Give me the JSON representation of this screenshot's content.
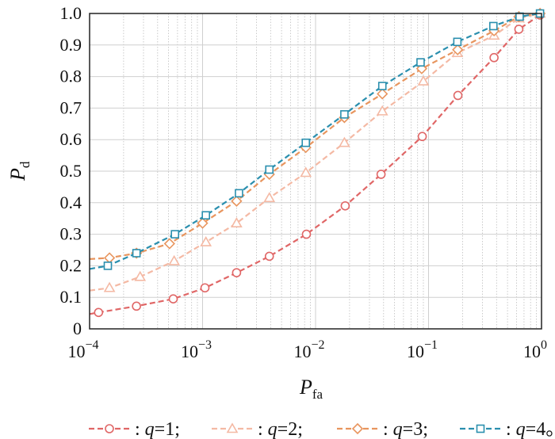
{
  "chart_data": {
    "type": "line",
    "x_scale": "log",
    "xlim": [
      0.0001,
      1
    ],
    "ylim": [
      0,
      1
    ],
    "x_ticks": [
      {
        "base": "10",
        "exp": "−4"
      },
      {
        "base": "10",
        "exp": "−3"
      },
      {
        "base": "10",
        "exp": "−2"
      },
      {
        "base": "10",
        "exp": "−1"
      },
      {
        "base": "10",
        "exp": "0"
      }
    ],
    "y_ticks": [
      "0",
      "0.1",
      "0.2",
      "0.3",
      "0.4",
      "0.5",
      "0.6",
      "0.7",
      "0.8",
      "0.9",
      "1.0"
    ],
    "xlabel": {
      "main": "P",
      "sub": "fa"
    },
    "ylabel": {
      "main": "P",
      "sub": "d"
    },
    "grid": true,
    "legend": {
      "placement": "bottom",
      "separator": ":",
      "items": [
        {
          "var": "q",
          "eq": "=1",
          "end": ";"
        },
        {
          "var": "q",
          "eq": "=2",
          "end": ";"
        },
        {
          "var": "q",
          "eq": "=3",
          "end": ";"
        },
        {
          "var": "q",
          "eq": "=4",
          "end": "。"
        }
      ]
    },
    "series": [
      {
        "key": "q1",
        "color": "#e06666",
        "marker": "circle",
        "x": [
          0.00012,
          0.00026,
          0.00055,
          0.00105,
          0.002,
          0.0039,
          0.0083,
          0.0183,
          0.038,
          0.088,
          0.182,
          0.38,
          0.63,
          0.97
        ],
        "y": [
          0.052,
          0.072,
          0.095,
          0.13,
          0.178,
          0.23,
          0.3,
          0.39,
          0.49,
          0.61,
          0.74,
          0.86,
          0.95,
          0.995
        ]
      },
      {
        "key": "q2",
        "color": "#f4b9a4",
        "marker": "triangle",
        "x": [
          0.00015,
          0.00028,
          0.00056,
          0.00107,
          0.002,
          0.0039,
          0.0082,
          0.018,
          0.039,
          0.09,
          0.18,
          0.38,
          0.63,
          0.97
        ],
        "y": [
          0.13,
          0.165,
          0.215,
          0.275,
          0.335,
          0.415,
          0.495,
          0.59,
          0.69,
          0.785,
          0.875,
          0.93,
          0.985,
          1.0
        ]
      },
      {
        "key": "q3",
        "color": "#e8955e",
        "marker": "diamond",
        "x": [
          0.00015,
          0.00026,
          0.00051,
          0.001,
          0.002,
          0.0039,
          0.0082,
          0.018,
          0.039,
          0.087,
          0.181,
          0.38,
          0.63,
          0.97
        ],
        "y": [
          0.225,
          0.24,
          0.27,
          0.335,
          0.405,
          0.49,
          0.575,
          0.67,
          0.745,
          0.825,
          0.885,
          0.945,
          0.99,
          1.0
        ]
      },
      {
        "key": "q4",
        "color": "#2a8fae",
        "marker": "square",
        "x": [
          0.000145,
          0.00026,
          0.00057,
          0.00107,
          0.0021,
          0.0039,
          0.0082,
          0.018,
          0.039,
          0.085,
          0.18,
          0.375,
          0.64,
          0.97
        ],
        "y": [
          0.2,
          0.24,
          0.3,
          0.36,
          0.43,
          0.505,
          0.59,
          0.68,
          0.77,
          0.845,
          0.91,
          0.96,
          0.99,
          1.0
        ]
      }
    ]
  }
}
